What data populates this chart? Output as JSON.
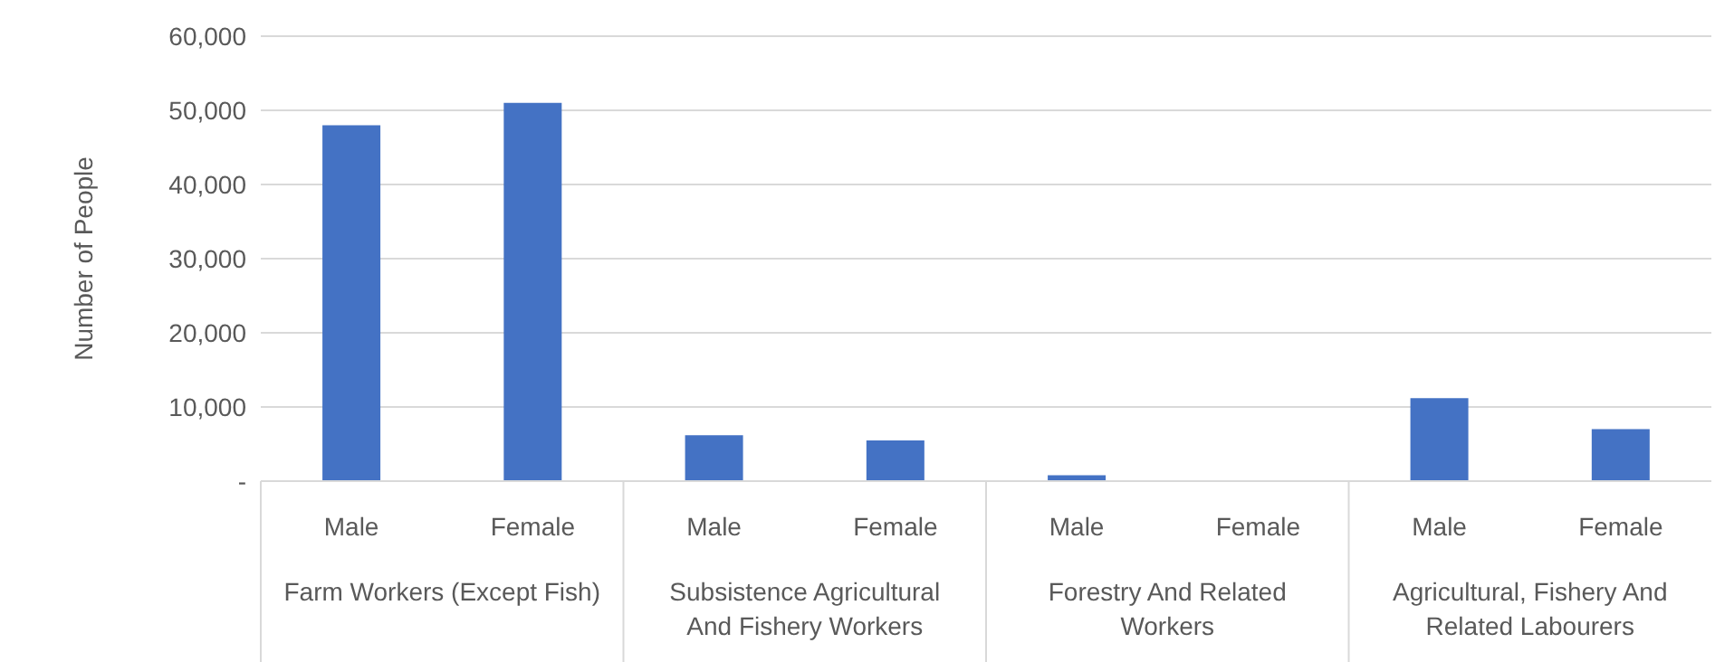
{
  "chart_data": {
    "type": "bar",
    "ylabel": "Number of People",
    "categories": [
      "Male",
      "Female",
      "Male",
      "Female",
      "Male",
      "Female",
      "Male",
      "Female"
    ],
    "annotations": [
      "Farm Workers (Except Fish)",
      "Subsistence Agricultural And Fishery Workers",
      "Forestry And Related Workers",
      "Agricultural, Fishery And Related Labourers"
    ],
    "values": [
      48000,
      51000,
      6200,
      5500,
      800,
      0,
      11200,
      7000
    ],
    "color": "#4472c4",
    "ylim": [
      0,
      60000
    ],
    "yticks": [
      {
        "value": 0,
        "label": "-"
      },
      {
        "value": 10000,
        "label": "10,000"
      },
      {
        "value": 20000,
        "label": "20,000"
      },
      {
        "value": 30000,
        "label": "30,000"
      },
      {
        "value": 40000,
        "label": "40,000"
      },
      {
        "value": 50000,
        "label": "50,000"
      },
      {
        "value": 60000,
        "label": "60,000"
      }
    ],
    "grid": "y"
  }
}
